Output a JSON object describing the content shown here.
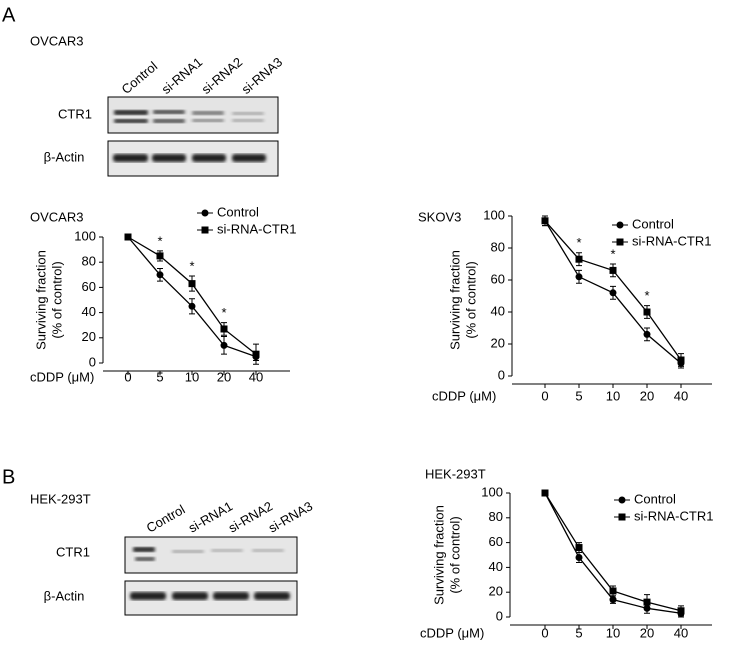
{
  "panel_labels": [
    "A",
    "B"
  ],
  "blots": [
    {
      "cell_line": "OVCAR3",
      "lanes": [
        "Control",
        "si-RNA1",
        "si-RNA2",
        "si-RNA3"
      ],
      "rows": [
        "CTR1",
        "β-Actin"
      ]
    },
    {
      "cell_line": "HEK-293T",
      "lanes": [
        "Control",
        "si-RNA1",
        "si-RNA2",
        "si-RNA3"
      ],
      "rows": [
        "CTR1",
        "β-Actin"
      ]
    }
  ],
  "chart_data": [
    {
      "type": "line",
      "title": "OVCAR3",
      "x_label": "cDDP (μM)",
      "y_label": [
        "Surviving fraction",
        "(% of control)"
      ],
      "categories": [
        "0",
        "5",
        "10",
        "20",
        "40"
      ],
      "series": [
        {
          "name": "Control",
          "color": "#000000",
          "marker": "circle",
          "values": [
            100,
            70,
            45,
            14,
            5
          ],
          "errors": [
            0,
            5,
            6,
            7,
            3
          ]
        },
        {
          "name": "si-RNA-CTR1",
          "color": "#000000",
          "marker": "square",
          "values": [
            100,
            85,
            63,
            27,
            7
          ],
          "errors": [
            0,
            4,
            6,
            5,
            8
          ]
        }
      ],
      "significance": [
        null,
        "*",
        "*",
        "*",
        null
      ],
      "ylim": [
        0,
        100
      ],
      "yticks": [
        0,
        20,
        40,
        60,
        80,
        100
      ]
    },
    {
      "type": "line",
      "title": "SKOV3",
      "x_label": "cDDP (μM)",
      "y_label": [
        "Surviving fraction",
        "(% of control)"
      ],
      "categories": [
        "0",
        "5",
        "10",
        "20",
        "40"
      ],
      "series": [
        {
          "name": "Control",
          "color": "#000000",
          "marker": "circle",
          "values": [
            97,
            62,
            52,
            26,
            8
          ],
          "errors": [
            3,
            4,
            4,
            4,
            3
          ]
        },
        {
          "name": "si-RNA-CTR1",
          "color": "#000000",
          "marker": "square",
          "values": [
            97,
            73,
            66,
            40,
            10
          ],
          "errors": [
            3,
            4,
            4,
            4,
            4
          ]
        }
      ],
      "significance": [
        null,
        "*",
        "*",
        "*",
        null
      ],
      "ylim": [
        0,
        100
      ],
      "yticks": [
        0,
        20,
        40,
        60,
        80,
        100
      ]
    },
    {
      "type": "line",
      "title": "HEK-293T",
      "x_label": "cDDP (μM)",
      "y_label": [
        "Surviving fraction",
        "(% of control)"
      ],
      "categories": [
        "0",
        "5",
        "10",
        "20",
        "40"
      ],
      "series": [
        {
          "name": "Control",
          "color": "#000000",
          "marker": "circle",
          "values": [
            100,
            48,
            14,
            7,
            3
          ],
          "errors": [
            0,
            4,
            3,
            4,
            3
          ]
        },
        {
          "name": "si-RNA-CTR1",
          "color": "#000000",
          "marker": "square",
          "values": [
            100,
            56,
            21,
            12,
            5
          ],
          "errors": [
            0,
            4,
            4,
            6,
            4
          ]
        }
      ],
      "ylim": [
        0,
        100
      ],
      "yticks": [
        0,
        20,
        40,
        60,
        80,
        100
      ]
    }
  ]
}
